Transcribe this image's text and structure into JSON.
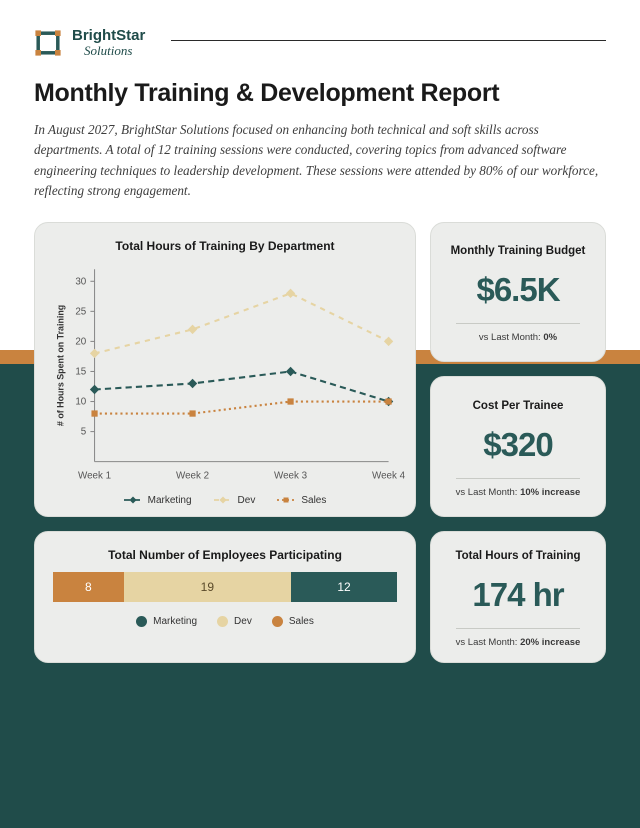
{
  "brand": {
    "top": "BrightStar",
    "bottom": "Solutions"
  },
  "title": "Monthly Training & Development Report",
  "intro": "In August 2027, BrightStar Solutions focused on enhancing both technical and soft skills across departments. A total of 12 training sessions were conducted, covering topics from advanced software engineering techniques to leadership development. These sessions were attended by 80% of our workforce, reflecting strong engagement.",
  "colors": {
    "teal": "#2a5a58",
    "dark_teal": "#204c4a",
    "tan": "#e6d4a3",
    "orange": "#c9833f",
    "card_bg": "#ecedeb",
    "card_border": "#dadcd8",
    "grid": "#d6d8d4",
    "axis": "#888"
  },
  "chart": {
    "title": "Total Hours of Training By Department",
    "type": "line",
    "ylabel": "# of Hours Spent on Training",
    "categories": [
      "Week 1",
      "Week 2",
      "Week 3",
      "Week 4"
    ],
    "ylim": [
      0,
      32
    ],
    "yticks": [
      5,
      10,
      15,
      20,
      25,
      30
    ],
    "series": [
      {
        "name": "Marketing",
        "color": "#2a5a58",
        "marker": "diamond",
        "dash": "6 4",
        "values": [
          12,
          13,
          15,
          10
        ]
      },
      {
        "name": "Dev",
        "color": "#e6d4a3",
        "marker": "diamond",
        "dash": "5 5",
        "values": [
          18,
          22,
          28,
          20
        ]
      },
      {
        "name": "Sales",
        "color": "#c9833f",
        "marker": "square",
        "dash": "2 3",
        "values": [
          8,
          8,
          10,
          10
        ]
      }
    ]
  },
  "stats": [
    {
      "title": "Monthly Training Budget",
      "value": "$6.5K",
      "sub_label": "vs Last Month: ",
      "sub_value": "0%"
    },
    {
      "title": "Cost Per Trainee",
      "value": "$320",
      "sub_label": "vs Last Month: ",
      "sub_value": "10% increase"
    },
    {
      "title": "Total Hours of Training",
      "value": "174 hr",
      "sub_label": "vs Last Month: ",
      "sub_value": "20% increase"
    }
  ],
  "participation": {
    "title": "Total Number of Employees Participating",
    "segments": [
      {
        "name": "Sales",
        "value": 8,
        "color": "#c9833f"
      },
      {
        "name": "Dev",
        "value": 19,
        "color": "#e6d4a3"
      },
      {
        "name": "Marketing",
        "value": 12,
        "color": "#2a5a58"
      }
    ],
    "legend_order": [
      "Marketing",
      "Dev",
      "Sales"
    ],
    "legend_colors": {
      "Marketing": "#2a5a58",
      "Dev": "#e6d4a3",
      "Sales": "#c9833f"
    }
  }
}
